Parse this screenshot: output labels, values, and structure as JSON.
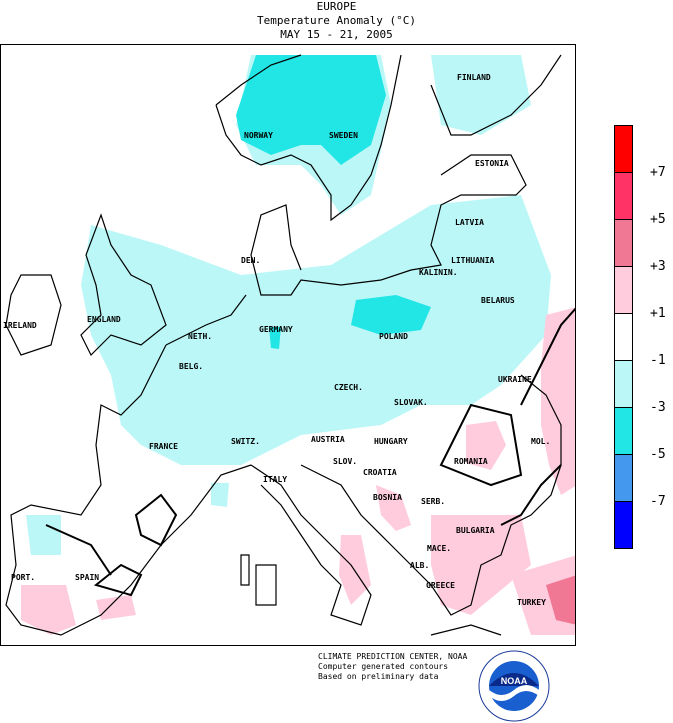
{
  "header": {
    "region": "EUROPE",
    "title": "Temperature Anomaly (°C)",
    "dates": "MAY 15 - 21, 2005"
  },
  "countries": [
    {
      "name": "FINLAND"
    },
    {
      "name": "NORWAY"
    },
    {
      "name": "SWEDEN"
    },
    {
      "name": "ESTONIA"
    },
    {
      "name": "LATVIA"
    },
    {
      "name": "LITHUANIA"
    },
    {
      "name": "KALININ."
    },
    {
      "name": "DEN."
    },
    {
      "name": "BELARUS"
    },
    {
      "name": "IRELAND"
    },
    {
      "name": "ENGLAND"
    },
    {
      "name": "NETH."
    },
    {
      "name": "GERMANY"
    },
    {
      "name": "POLAND"
    },
    {
      "name": "BELG."
    },
    {
      "name": "CZECH."
    },
    {
      "name": "UKRAINE"
    },
    {
      "name": "SLOVAK."
    },
    {
      "name": "AUSTRIA"
    },
    {
      "name": "HUNGARY"
    },
    {
      "name": "MOL."
    },
    {
      "name": "FRANCE"
    },
    {
      "name": "SWITZ."
    },
    {
      "name": "SLOV."
    },
    {
      "name": "ROMANIA"
    },
    {
      "name": "CROATIA"
    },
    {
      "name": "ITALY"
    },
    {
      "name": "BOSNIA"
    },
    {
      "name": "SERB."
    },
    {
      "name": "BULGARIA"
    },
    {
      "name": "MACE."
    },
    {
      "name": "PORT."
    },
    {
      "name": "SPAIN"
    },
    {
      "name": "ALB."
    },
    {
      "name": "GREECE"
    },
    {
      "name": "TURKEY"
    }
  ],
  "legend": {
    "colors": [
      "#ff0000",
      "#ff3366",
      "#f07895",
      "#ffccdd",
      "#ffffff",
      "#bbf7f7",
      "#22e5e5",
      "#4499ee",
      "#0000ff"
    ],
    "ticks": [
      "+7",
      "+5",
      "+3",
      "+1",
      "-1",
      "-3",
      "-5",
      "-7"
    ]
  },
  "colors": {
    "cool": "#bbf7f7",
    "cold": "#22e5e5",
    "warm": "#ffccdd",
    "warmer": "#f07895"
  },
  "credits": {
    "line1": "CLIMATE PREDICTION CENTER, NOAA",
    "line2": "Computer generated contours",
    "line3": "Based on preliminary data"
  },
  "logo": {
    "text": "NOAA"
  }
}
